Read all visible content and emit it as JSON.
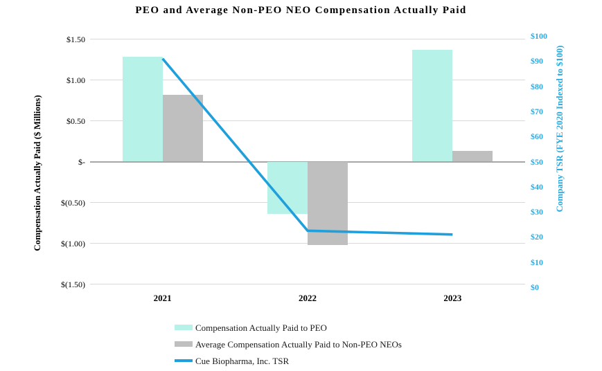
{
  "title": "PEO and Average Non-PEO NEO Compensation Actually Paid",
  "chart_data": {
    "type": "bar",
    "subtype": "combo bar+line, dual axis",
    "categories": [
      "2021",
      "2022",
      "2023"
    ],
    "series": [
      {
        "name": "Compensation Actually Paid to PEO",
        "type": "bar",
        "axis": "left",
        "color": "#b6f2e8",
        "values": [
          1.28,
          -0.64,
          1.37
        ]
      },
      {
        "name": "Average Compensation Actually Paid to Non-PEO NEOs",
        "type": "bar",
        "axis": "left",
        "color": "#bfbfbf",
        "values": [
          0.82,
          -1.02,
          0.13
        ]
      },
      {
        "name": "Cue Biopharma, Inc. TSR",
        "type": "line",
        "axis": "right",
        "color": "#1fa0dc",
        "values": [
          91,
          22.5,
          21
        ]
      }
    ],
    "left_axis": {
      "label": "Compensation Actually Paid ($ Millions)",
      "min": -1.5,
      "max": 1.5,
      "tick_step": 0.5,
      "tick_labels": [
        "$1.50",
        "$1.00",
        "$0.50",
        "$-",
        "$(0.50)",
        "$(1.00)",
        "$(1.50)"
      ]
    },
    "right_axis": {
      "label": "Company TSR (FYE 2020 Indexed to $100)",
      "min": 0,
      "max": 100,
      "tick_step": 10,
      "tick_labels": [
        "$100",
        "$90",
        "$80",
        "$70",
        "$60",
        "$50",
        "$40",
        "$30",
        "$20",
        "$10",
        "$0"
      ],
      "color": "#29abe2"
    },
    "grid": "horizontal gridlines at left-axis ticks, light gray; zero line darker gray",
    "legend_position": "bottom-left",
    "colors": {
      "gridline": "#d9d9d9",
      "zero_line": "#a6a6a6",
      "background": "#ffffff"
    }
  }
}
